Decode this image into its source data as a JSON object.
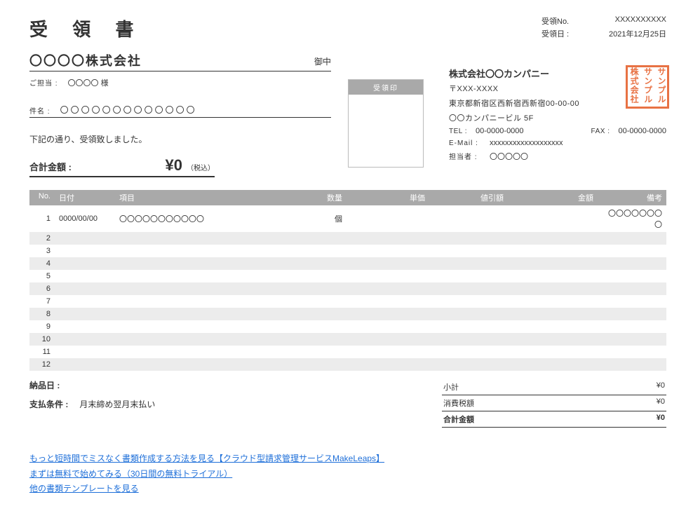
{
  "doc": {
    "title": "受 領 書",
    "receipt_no_label": "受領No.",
    "receipt_no": "XXXXXXXXXX",
    "date_label": "受領日 :",
    "date": "2021年12月25日"
  },
  "recipient": {
    "name": "〇〇〇〇株式会社",
    "suffix": "御中",
    "contact_label": "ご担当 :",
    "contact": "〇〇〇〇 様",
    "subject_label": "件名 :",
    "subject": "〇〇〇〇〇〇〇〇〇〇〇〇〇"
  },
  "note": "下記の通り、受領致しました。",
  "total_box": {
    "label": "合計金額 :",
    "amount": "¥0",
    "tax_suffix": "（税込）"
  },
  "stamp_header": "受領印",
  "company": {
    "name": "株式会社〇〇カンパニー",
    "postal": "〒XXX-XXXX",
    "addr1": "東京都新宿区西新宿西新宿00-00-00",
    "addr2": "〇〇カンパニービル 5F",
    "tel_label": "TEL :",
    "tel": "00-0000-0000",
    "fax_label": "FAX :",
    "fax": "00-0000-0000",
    "email_label": "E-Mail :",
    "email": "xxxxxxxxxxxxxxxxxxx",
    "staff_label": "担当者 :",
    "staff": "〇〇〇〇〇"
  },
  "seal": {
    "col1": "株式会社",
    "col2": "サンプル",
    "col3": "サンプル"
  },
  "table": {
    "headers": {
      "no": "No.",
      "date": "日付",
      "item": "項目",
      "qty": "数量",
      "unit": "単価",
      "discount": "値引額",
      "amount": "金額",
      "note": "備考"
    },
    "rows": [
      {
        "no": "1",
        "date": "0000/00/00",
        "item": "〇〇〇〇〇〇〇〇〇〇〇",
        "qty": "個",
        "unit": "",
        "discount": "",
        "amount": "",
        "note": "〇〇〇〇〇〇〇〇"
      },
      {
        "no": "2"
      },
      {
        "no": "3"
      },
      {
        "no": "4"
      },
      {
        "no": "5"
      },
      {
        "no": "6"
      },
      {
        "no": "7"
      },
      {
        "no": "8"
      },
      {
        "no": "9"
      },
      {
        "no": "10"
      },
      {
        "no": "11"
      },
      {
        "no": "12"
      }
    ]
  },
  "bottom": {
    "delivery_label": "納品日 :",
    "delivery": "",
    "payterms_label": "支払条件 :",
    "payterms": "月末締め翌月末払い"
  },
  "summary": {
    "subtotal_label": "小計",
    "subtotal": "¥0",
    "tax_label": "消費税額",
    "tax": "¥0",
    "total_label": "合計金額",
    "total": "¥0"
  },
  "links": {
    "l1": "もっと短時間でミスなく書類作成する方法を見る【クラウド型請求管理サービスMakeLeaps】",
    "l2": "まずは無料で始めてみる（30日間の無料トライアル）",
    "l3": "他の書類テンプレートを見る"
  },
  "colors": {
    "header_bg": "#a9a9a9",
    "row_alt": "#ececec",
    "seal": "#e87244",
    "link": "#1e6fd9"
  }
}
